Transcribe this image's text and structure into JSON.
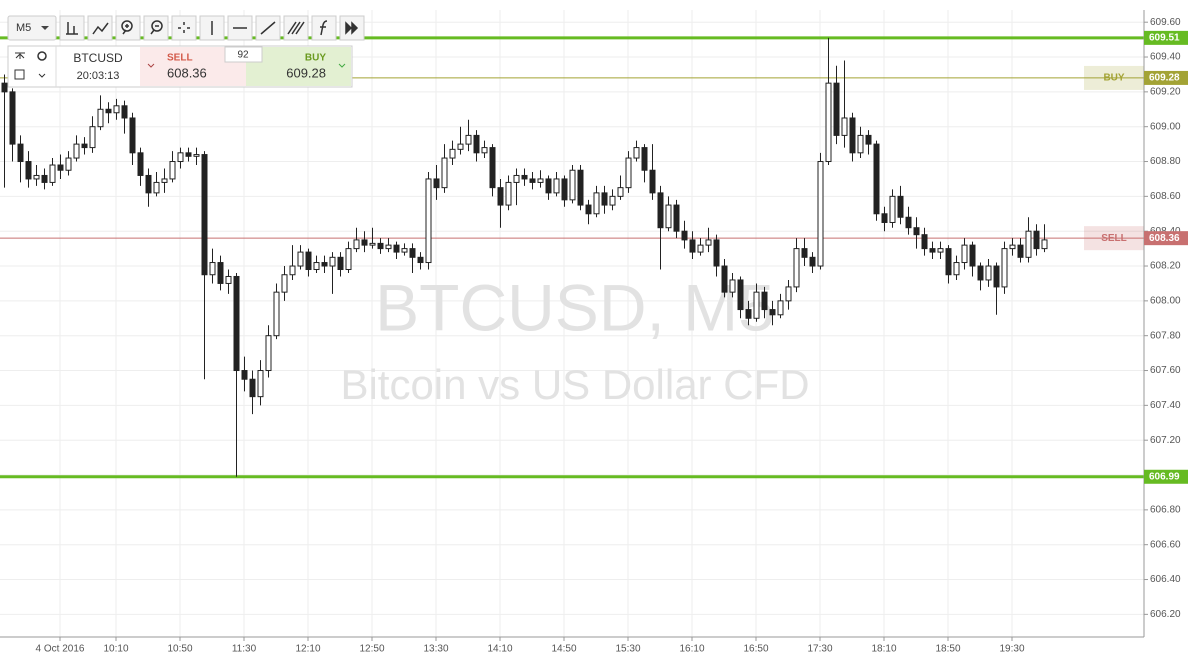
{
  "toolbar": {
    "timeframe": "M5"
  },
  "order_panel": {
    "symbol": "BTCUSD",
    "time": "20:03:13",
    "sell_label": "SELL",
    "sell_price": "608.36",
    "spread": "92",
    "buy_label": "BUY",
    "buy_price": "609.28"
  },
  "chart_data": {
    "type": "candlestick",
    "watermark_title": "BTCUSD, M5",
    "watermark_subtitle": "Bitcoin vs US Dollar CFD",
    "open": [
      609.25,
      609.2,
      608.9,
      608.8,
      608.7,
      608.72,
      608.68,
      608.78,
      608.75,
      608.82,
      608.9,
      608.88,
      609.0,
      609.1,
      609.08,
      609.12,
      609.05,
      608.85,
      608.72,
      608.62,
      608.68,
      608.7,
      608.8,
      608.85,
      608.83,
      608.84,
      608.15,
      608.22,
      608.1,
      608.14,
      607.6,
      607.55,
      607.45,
      607.6,
      607.8,
      608.05,
      608.15,
      608.2,
      608.28,
      608.18,
      608.22,
      608.2,
      608.25,
      608.18,
      608.3,
      608.35,
      608.32,
      608.33,
      608.3,
      608.32,
      608.28,
      608.3,
      608.25,
      608.22,
      608.7,
      608.65,
      608.82,
      608.87,
      608.9,
      608.95,
      608.85,
      608.88,
      608.65,
      608.55,
      608.68,
      608.72,
      608.7,
      608.68,
      608.7,
      608.62,
      608.7,
      608.58,
      608.75,
      608.55,
      608.5,
      608.62,
      608.55,
      608.6,
      608.65,
      608.82,
      608.88,
      608.75,
      608.62,
      608.42,
      608.55,
      608.4,
      608.35,
      608.28,
      608.32,
      608.35,
      608.2,
      608.05,
      608.12,
      607.95,
      607.9,
      608.05,
      607.95,
      607.92,
      608.0,
      608.08,
      608.3,
      608.25,
      608.2,
      608.8,
      609.25,
      608.95,
      609.05,
      608.85,
      608.95,
      608.9,
      608.5,
      608.45,
      608.6,
      608.48,
      608.42,
      608.38,
      608.3,
      608.28,
      608.3,
      608.15,
      608.22,
      608.32,
      608.2,
      608.12,
      608.2,
      608.08,
      608.3,
      608.32,
      608.25,
      608.4,
      608.3
    ],
    "high": [
      609.3,
      609.22,
      608.95,
      608.86,
      608.78,
      608.76,
      608.82,
      608.84,
      608.86,
      608.95,
      608.94,
      609.06,
      609.18,
      609.14,
      609.16,
      609.15,
      609.08,
      608.88,
      608.76,
      608.74,
      608.76,
      608.86,
      608.88,
      608.88,
      608.88,
      608.86,
      608.3,
      608.26,
      608.18,
      608.16,
      607.68,
      607.6,
      607.66,
      607.86,
      608.1,
      608.2,
      608.32,
      608.32,
      608.3,
      608.26,
      608.26,
      608.28,
      608.28,
      608.34,
      608.42,
      608.4,
      608.42,
      608.36,
      608.36,
      608.34,
      608.33,
      608.33,
      608.28,
      608.74,
      608.78,
      608.9,
      608.92,
      609.0,
      609.04,
      608.98,
      608.92,
      608.9,
      608.7,
      608.72,
      608.76,
      608.76,
      608.74,
      608.75,
      608.72,
      608.74,
      608.72,
      608.78,
      608.78,
      608.58,
      608.66,
      608.66,
      608.64,
      608.72,
      608.86,
      608.92,
      608.9,
      608.9,
      608.66,
      608.6,
      608.58,
      608.46,
      608.4,
      608.36,
      608.42,
      608.38,
      608.24,
      608.16,
      608.14,
      608.0,
      608.1,
      608.08,
      608.0,
      608.04,
      608.12,
      608.36,
      608.36,
      608.28,
      608.85,
      609.51,
      609.35,
      609.38,
      609.08,
      609.0,
      608.98,
      608.92,
      608.54,
      608.64,
      608.66,
      608.54,
      608.48,
      608.42,
      608.34,
      608.34,
      608.32,
      608.26,
      608.36,
      608.34,
      608.22,
      608.24,
      608.22,
      608.34,
      608.36,
      608.36,
      608.48,
      608.44,
      608.44
    ],
    "low": [
      608.65,
      608.8,
      608.68,
      608.65,
      608.66,
      608.64,
      608.66,
      608.7,
      608.72,
      608.8,
      608.84,
      608.85,
      608.98,
      609.02,
      609.04,
      608.96,
      608.78,
      608.66,
      608.54,
      608.6,
      608.62,
      608.68,
      608.76,
      608.8,
      608.78,
      607.55,
      608.1,
      608.06,
      608.04,
      606.99,
      607.48,
      607.35,
      607.4,
      607.56,
      607.78,
      608.0,
      608.12,
      608.18,
      608.14,
      608.16,
      608.16,
      608.04,
      608.14,
      608.16,
      608.28,
      608.28,
      608.3,
      608.27,
      608.28,
      608.24,
      608.26,
      608.16,
      608.18,
      608.18,
      608.58,
      608.62,
      608.78,
      608.84,
      608.86,
      608.8,
      608.82,
      608.6,
      608.42,
      608.52,
      608.55,
      608.66,
      608.64,
      608.65,
      608.58,
      608.6,
      608.54,
      608.56,
      608.52,
      608.44,
      608.48,
      608.5,
      608.52,
      608.58,
      608.62,
      608.8,
      608.68,
      608.58,
      608.18,
      608.4,
      608.36,
      608.3,
      608.24,
      608.26,
      608.28,
      608.14,
      608.02,
      608.02,
      607.9,
      607.86,
      607.88,
      607.9,
      607.86,
      607.9,
      607.95,
      608.05,
      608.2,
      608.16,
      608.18,
      608.78,
      608.9,
      608.88,
      608.8,
      608.82,
      608.84,
      608.46,
      608.4,
      608.42,
      608.44,
      608.38,
      608.3,
      608.26,
      608.24,
      608.24,
      608.1,
      608.12,
      608.18,
      608.14,
      608.06,
      608.08,
      607.92,
      608.04,
      608.26,
      608.22,
      608.22,
      608.26,
      608.28
    ],
    "close": [
      609.2,
      608.9,
      608.8,
      608.7,
      608.72,
      608.68,
      608.78,
      608.75,
      608.82,
      608.9,
      608.88,
      609.0,
      609.1,
      609.08,
      609.12,
      609.05,
      608.85,
      608.72,
      608.62,
      608.68,
      608.7,
      608.8,
      608.85,
      608.83,
      608.84,
      608.15,
      608.22,
      608.1,
      608.14,
      607.6,
      607.55,
      607.45,
      607.6,
      607.8,
      608.05,
      608.15,
      608.2,
      608.28,
      608.18,
      608.22,
      608.2,
      608.25,
      608.18,
      608.3,
      608.35,
      608.32,
      608.33,
      608.3,
      608.32,
      608.28,
      608.3,
      608.25,
      608.22,
      608.7,
      608.65,
      608.82,
      608.87,
      608.9,
      608.95,
      608.85,
      608.88,
      608.65,
      608.55,
      608.68,
      608.72,
      608.7,
      608.68,
      608.7,
      608.62,
      608.7,
      608.58,
      608.75,
      608.55,
      608.5,
      608.62,
      608.55,
      608.6,
      608.65,
      608.82,
      608.88,
      608.75,
      608.62,
      608.42,
      608.55,
      608.4,
      608.35,
      608.28,
      608.32,
      608.35,
      608.2,
      608.05,
      608.12,
      607.95,
      607.9,
      608.05,
      607.95,
      607.92,
      608.0,
      608.08,
      608.3,
      608.25,
      608.2,
      608.8,
      609.25,
      608.95,
      609.05,
      608.85,
      608.95,
      608.9,
      608.5,
      608.45,
      608.6,
      608.48,
      608.42,
      608.38,
      608.3,
      608.28,
      608.3,
      608.15,
      608.22,
      608.32,
      608.2,
      608.12,
      608.2,
      608.08,
      608.3,
      608.32,
      608.25,
      608.4,
      608.3,
      608.35
    ],
    "up_color": "#ffffff",
    "down_color": "#222222",
    "xlim": [
      -0.5,
      142.5
    ],
    "xticks": [
      {
        "value": 7,
        "label": "4 Oct 2016"
      },
      {
        "value": 14,
        "label": "10:10"
      },
      {
        "value": 22,
        "label": "10:50"
      },
      {
        "value": 30,
        "label": "11:30"
      },
      {
        "value": 38,
        "label": "12:10"
      },
      {
        "value": 46,
        "label": "12:50"
      },
      {
        "value": 54,
        "label": "13:30"
      },
      {
        "value": 62,
        "label": "14:10"
      },
      {
        "value": 70,
        "label": "14:50"
      },
      {
        "value": 78,
        "label": "15:30"
      },
      {
        "value": 86,
        "label": "16:10"
      },
      {
        "value": 94,
        "label": "16:50"
      },
      {
        "value": 102,
        "label": "17:30"
      },
      {
        "value": 110,
        "label": "18:10"
      },
      {
        "value": 118,
        "label": "18:50"
      },
      {
        "value": 126,
        "label": "19:30"
      }
    ],
    "ylim": [
      606.07,
      609.67
    ],
    "yticks": [
      {
        "value": 609.6,
        "label": "609.60"
      },
      {
        "value": 609.4,
        "label": "609.40"
      },
      {
        "value": 609.2,
        "label": "609.20"
      },
      {
        "value": 609.0,
        "label": "609.00"
      },
      {
        "value": 608.8,
        "label": "608.80"
      },
      {
        "value": 608.6,
        "label": "608.60"
      },
      {
        "value": 608.4,
        "label": "608.40"
      },
      {
        "value": 608.2,
        "label": "608.20"
      },
      {
        "value": 608.0,
        "label": "608.00"
      },
      {
        "value": 607.8,
        "label": "607.80"
      },
      {
        "value": 607.6,
        "label": "607.60"
      },
      {
        "value": 607.4,
        "label": "607.40"
      },
      {
        "value": 607.2,
        "label": "607.20"
      },
      {
        "value": 607.0,
        "label": "607.00"
      },
      {
        "value": 606.8,
        "label": "606.80"
      },
      {
        "value": 606.6,
        "label": "606.60"
      },
      {
        "value": 606.4,
        "label": "606.40"
      },
      {
        "value": 606.2,
        "label": "606.20"
      }
    ],
    "grid": true,
    "levels": [
      {
        "value": 609.51,
        "color": "#66bb22"
      },
      {
        "value": 609.28,
        "color": "#a3a335",
        "label": "BUY"
      },
      {
        "value": 608.36,
        "color": "#c87070",
        "label": "SELL"
      },
      {
        "value": 606.99,
        "color": "#66bb22"
      }
    ]
  }
}
